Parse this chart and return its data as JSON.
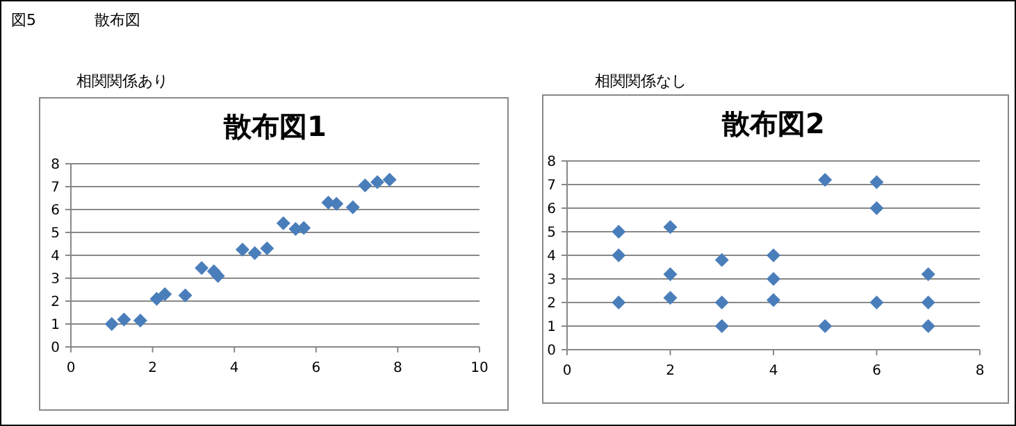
{
  "chart_data": [
    {
      "type": "scatter",
      "title": "散布図1",
      "subtitle": "相関関係あり",
      "annotations": [
        "図5",
        "散布図"
      ],
      "color": "#4a7ebb",
      "marker": "diamond",
      "grid": "y",
      "x": [
        1,
        1.3,
        1.7,
        2.1,
        2.3,
        2.8,
        3.2,
        3.5,
        3.6,
        4.2,
        4.5,
        4.8,
        5.2,
        5.5,
        5.7,
        6.3,
        6.5,
        6.9,
        7.2,
        7.5,
        7.8
      ],
      "values": [
        1,
        1.2,
        1.15,
        2.1,
        2.3,
        2.25,
        3.45,
        3.3,
        3.1,
        4.25,
        4.1,
        4.3,
        5.4,
        5.15,
        5.2,
        6.3,
        6.25,
        6.1,
        7.05,
        7.2,
        7.3
      ],
      "xlim": [
        0,
        10
      ],
      "xticks": [
        0,
        2,
        4,
        6,
        8,
        10
      ],
      "ylim": [
        0,
        8
      ],
      "yticks": [
        0,
        1,
        2,
        3,
        4,
        5,
        6,
        7,
        8
      ]
    },
    {
      "type": "scatter",
      "title": "散布図2",
      "subtitle": "相関関係なし",
      "color": "#4a7ebb",
      "marker": "diamond",
      "grid": "y",
      "x": [
        1,
        1,
        1,
        2,
        2,
        2,
        3,
        3,
        3,
        4,
        4,
        4,
        5,
        5,
        6,
        6,
        6,
        7,
        7,
        7
      ],
      "values": [
        5,
        4,
        2,
        5.2,
        3.2,
        2.2,
        3.8,
        2,
        1,
        4,
        3,
        2.1,
        7.2,
        1,
        7.1,
        6,
        2,
        3.2,
        2,
        1
      ],
      "xlim": [
        0,
        8
      ],
      "xticks": [
        0,
        2,
        4,
        6,
        8
      ],
      "ylim": [
        0,
        8
      ],
      "yticks": [
        0,
        1,
        2,
        3,
        4,
        5,
        6,
        7,
        8
      ]
    }
  ]
}
